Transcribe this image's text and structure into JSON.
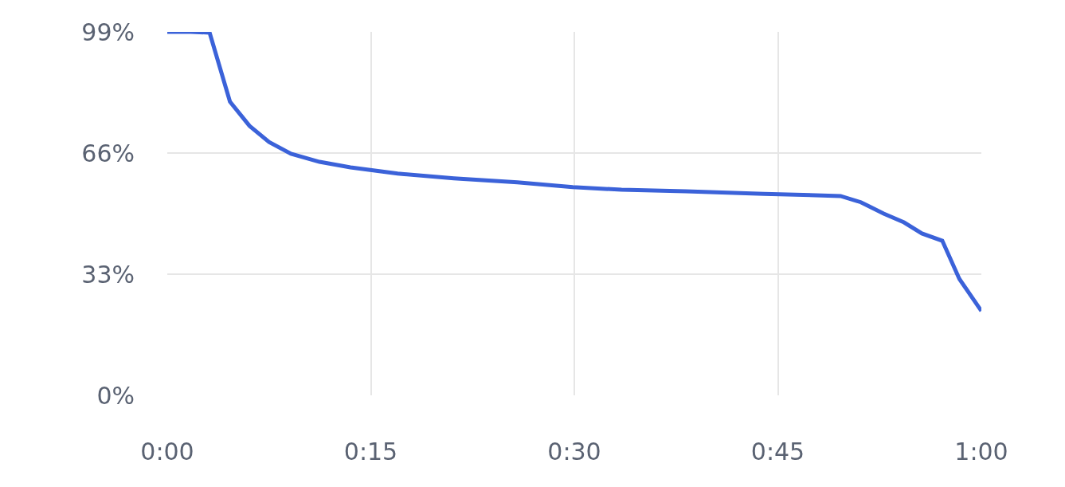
{
  "chart_data": {
    "type": "line",
    "x": [
      0,
      0.029,
      0.052,
      0.077,
      0.101,
      0.125,
      0.152,
      0.187,
      0.225,
      0.283,
      0.352,
      0.43,
      0.498,
      0.558,
      0.637,
      0.733,
      0.827,
      0.852,
      0.88,
      0.905,
      0.927,
      0.952,
      0.973,
      1.0
    ],
    "series": [
      {
        "color": "#3b62d9",
        "values": [
          99,
          99,
          98.8,
          80,
          73.4,
          69,
          65.8,
          63.6,
          62.1,
          60.4,
          59.1,
          58,
          56.7,
          56,
          55.6,
          54.9,
          54.3,
          52.6,
          49.5,
          47.1,
          44.1,
          42.1,
          31.7,
          23
        ]
      }
    ],
    "xlim": [
      0,
      1
    ],
    "xticks": [
      {
        "value": 0,
        "label": "0:00"
      },
      {
        "value": 0.25,
        "label": "0:15"
      },
      {
        "value": 0.5,
        "label": "0:30"
      },
      {
        "value": 0.75,
        "label": "0:45"
      },
      {
        "value": 1,
        "label": "1:00"
      }
    ],
    "ylim": [
      0,
      99
    ],
    "yticks": [
      {
        "value": 0,
        "label": "0%"
      },
      {
        "value": 33,
        "label": "33%"
      },
      {
        "value": 66,
        "label": "66%"
      },
      {
        "value": 99,
        "label": "99%"
      }
    ],
    "grid": true,
    "line_style": "solid",
    "legend": false
  }
}
